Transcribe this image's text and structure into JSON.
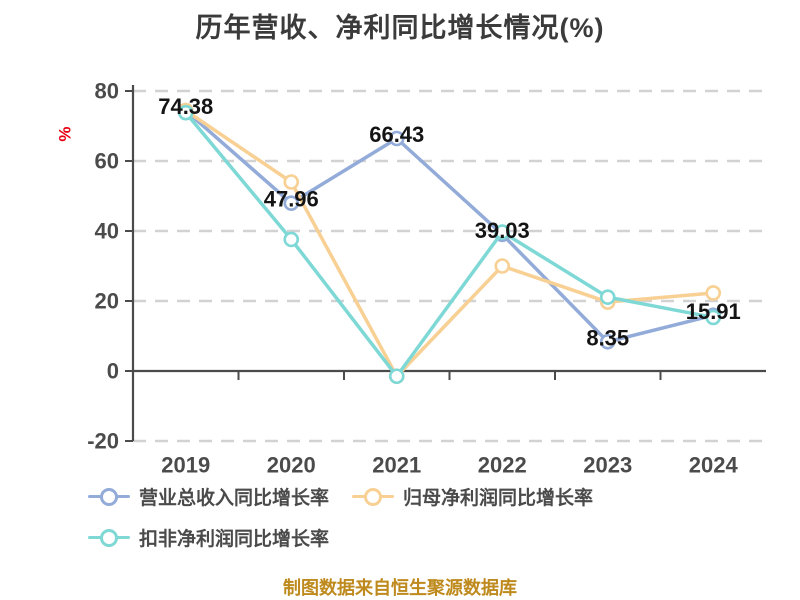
{
  "title": "历年营收、净利同比增长情况(%)",
  "y_axis_unit": "%",
  "footer": "制图数据来自恒生聚源数据库",
  "colors": {
    "blue": "#92abd8",
    "orange": "#f8d094",
    "teal": "#7ed8d5",
    "axis": "#4b4b4b",
    "grid": "#d2d2d2",
    "data_label": "#141414",
    "unit_red": "#e60012",
    "footer_gold": "#bf8a1d",
    "title_gray": "#3b3b3b",
    "marker_fill": "#ffffff"
  },
  "chart_data": {
    "type": "line",
    "title": "历年营收、净利同比增长情况(%)",
    "categories": [
      "2019",
      "2020",
      "2021",
      "2022",
      "2023",
      "2024"
    ],
    "series": [
      {
        "name": "营业总收入同比增长率",
        "color_key": "blue",
        "values": [
          74.38,
          47.96,
          66.43,
          39.03,
          8.35,
          15.91
        ],
        "labeled": true
      },
      {
        "name": "归母净利润同比增长率",
        "color_key": "orange",
        "values": [
          74.4,
          54.0,
          -1.5,
          30.0,
          19.7,
          22.3
        ],
        "labeled": false
      },
      {
        "name": "扣非净利润同比增长率",
        "color_key": "teal",
        "values": [
          73.8,
          37.6,
          -1.5,
          39.7,
          21.1,
          15.3
        ],
        "labeled": false
      }
    ],
    "yticks": [
      -20,
      0,
      20,
      40,
      60,
      80
    ],
    "ylim": [
      -20,
      80
    ],
    "ylabel": "%",
    "grid": "horizontal-dashed",
    "legend_position": "bottom-left"
  },
  "data_labels": [
    "74.38",
    "47.96",
    "66.43",
    "39.03",
    "8.35",
    "15.91"
  ]
}
